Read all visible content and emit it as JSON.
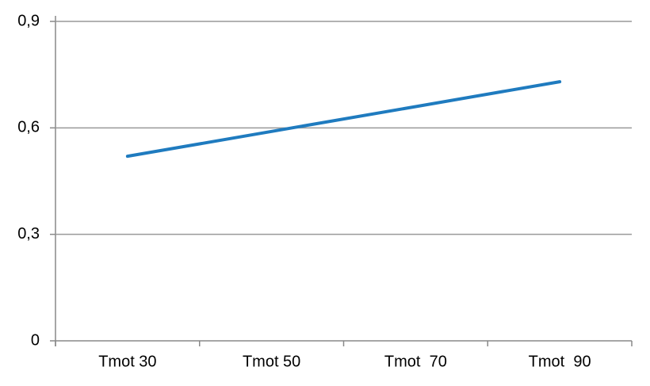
{
  "chart_data": {
    "type": "line",
    "categories": [
      "Tmot 30",
      "Tmot 50",
      "Tmot  70",
      "Tmot  90"
    ],
    "values": [
      0.52,
      0.59,
      0.66,
      0.73
    ],
    "color": "#1f7bbf",
    "ylim": [
      0,
      0.9
    ],
    "yticks": [
      0,
      {
        "value": 0.3,
        "label": "0,3"
      },
      {
        "value": 0.6,
        "label": "0,6"
      },
      {
        "value": 0.9,
        "label": "0,9"
      }
    ],
    "grid": true
  }
}
